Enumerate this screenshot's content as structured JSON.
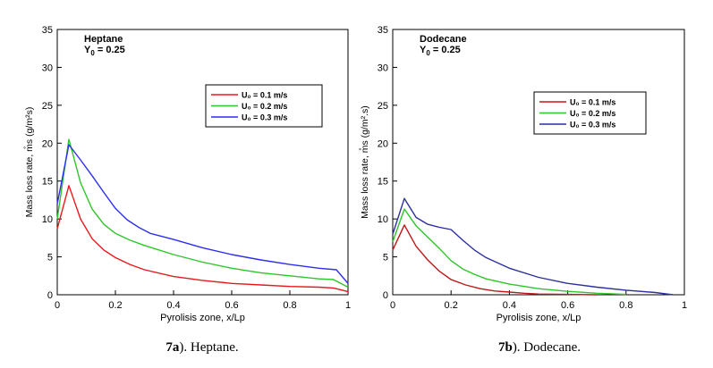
{
  "chart_data": [
    {
      "type": "line",
      "panel": "a",
      "title": "Heptane",
      "subtitle_html": "Y<tspan dy='3' font-size='8'>0</tspan><tspan dy='-3'> = 0.25</tspan>",
      "xlabel": "Pyrolisis zone, x/Lp",
      "ylabel": "Mass loss rate, m̊s (g/m²s)",
      "xlim": [
        0,
        1
      ],
      "ylim": [
        0,
        35
      ],
      "xticks": [
        0,
        0.2,
        0.4,
        0.6,
        0.8,
        1
      ],
      "xtick_labels": [
        "0",
        "0.2",
        "0.4",
        "0.6",
        "0.8",
        "1"
      ],
      "yticks": [
        0,
        5,
        10,
        15,
        20,
        25,
        30,
        35
      ],
      "legend_position": "upper-right",
      "series": [
        {
          "name": "U₀ = 0.1 m/s",
          "color": "#e8191d",
          "x": [
            0,
            0.04,
            0.08,
            0.12,
            0.16,
            0.2,
            0.25,
            0.3,
            0.4,
            0.5,
            0.6,
            0.7,
            0.8,
            0.9,
            0.95,
            1.0
          ],
          "y": [
            8.7,
            14.4,
            10.0,
            7.4,
            5.9,
            4.9,
            4.0,
            3.3,
            2.4,
            1.9,
            1.5,
            1.3,
            1.1,
            1.0,
            0.9,
            0.4
          ]
        },
        {
          "name": "U₀ = 0.2 m/s",
          "color": "#2ec52b",
          "x": [
            0,
            0.04,
            0.08,
            0.12,
            0.16,
            0.2,
            0.25,
            0.3,
            0.4,
            0.5,
            0.6,
            0.7,
            0.8,
            0.9,
            0.95,
            1.0
          ],
          "y": [
            10.0,
            20.5,
            14.8,
            11.3,
            9.3,
            8.1,
            7.2,
            6.5,
            5.3,
            4.3,
            3.5,
            2.9,
            2.5,
            2.1,
            2.0,
            1.0
          ]
        },
        {
          "name": "U₀ = 0.3 m/s",
          "color": "#2d2ff0",
          "x": [
            0,
            0.04,
            0.08,
            0.12,
            0.16,
            0.2,
            0.24,
            0.28,
            0.32,
            0.4,
            0.5,
            0.6,
            0.7,
            0.8,
            0.9,
            0.96,
            1.0
          ],
          "y": [
            12.0,
            19.8,
            17.8,
            15.7,
            13.5,
            11.4,
            9.9,
            8.9,
            8.1,
            7.3,
            6.2,
            5.3,
            4.6,
            4.0,
            3.5,
            3.3,
            1.5
          ]
        }
      ],
      "caption_bold": "7a",
      "caption_rest": "). Heptane."
    },
    {
      "type": "line",
      "panel": "b",
      "title": "Dodecane",
      "subtitle_html": "Y<tspan dy='3' font-size='8'>0</tspan><tspan dy='-3'> = 0.25</tspan>",
      "xlabel": "Pyrolisis zone, x/Lp",
      "ylabel": "Mass loss rate, m̊s (g/m².s)",
      "xlim": [
        0,
        1
      ],
      "ylim": [
        0,
        35
      ],
      "xticks": [
        0,
        0.2,
        0.4,
        0.6,
        0.8,
        1
      ],
      "xtick_labels": [
        "0",
        "0.2",
        "0.4",
        "0.6",
        "0.8",
        "1"
      ],
      "yticks": [
        0,
        5,
        10,
        15,
        20,
        25,
        30,
        35
      ],
      "legend_position": "center-right",
      "series": [
        {
          "name": "U₀ = 0.1 m/s",
          "color": "#c01818",
          "x": [
            0,
            0.04,
            0.08,
            0.12,
            0.16,
            0.2,
            0.25,
            0.3,
            0.35,
            0.4,
            0.45,
            0.5,
            0.6,
            0.7
          ],
          "y": [
            5.9,
            9.2,
            6.4,
            4.6,
            3.1,
            2.0,
            1.3,
            0.8,
            0.5,
            0.35,
            0.2,
            0.1,
            0.05,
            0.0
          ]
        },
        {
          "name": "U₀ = 0.2 m/s",
          "color": "#2ec52b",
          "x": [
            0,
            0.04,
            0.08,
            0.12,
            0.16,
            0.2,
            0.24,
            0.28,
            0.32,
            0.4,
            0.5,
            0.6,
            0.7,
            0.8
          ],
          "y": [
            7.0,
            11.3,
            9.1,
            7.6,
            6.1,
            4.5,
            3.4,
            2.7,
            2.1,
            1.4,
            0.8,
            0.45,
            0.2,
            0.05
          ]
        },
        {
          "name": "U₀ = 0.3 m/s",
          "color": "#2d2fa0",
          "x": [
            0,
            0.04,
            0.08,
            0.12,
            0.16,
            0.2,
            0.24,
            0.28,
            0.32,
            0.4,
            0.5,
            0.6,
            0.7,
            0.8,
            0.9,
            0.96
          ],
          "y": [
            8.0,
            12.7,
            10.2,
            9.3,
            8.9,
            8.6,
            7.2,
            5.9,
            4.9,
            3.5,
            2.3,
            1.5,
            1.0,
            0.6,
            0.3,
            0.0
          ]
        }
      ],
      "caption_bold": "7b",
      "caption_rest": "). Dodecane."
    }
  ]
}
